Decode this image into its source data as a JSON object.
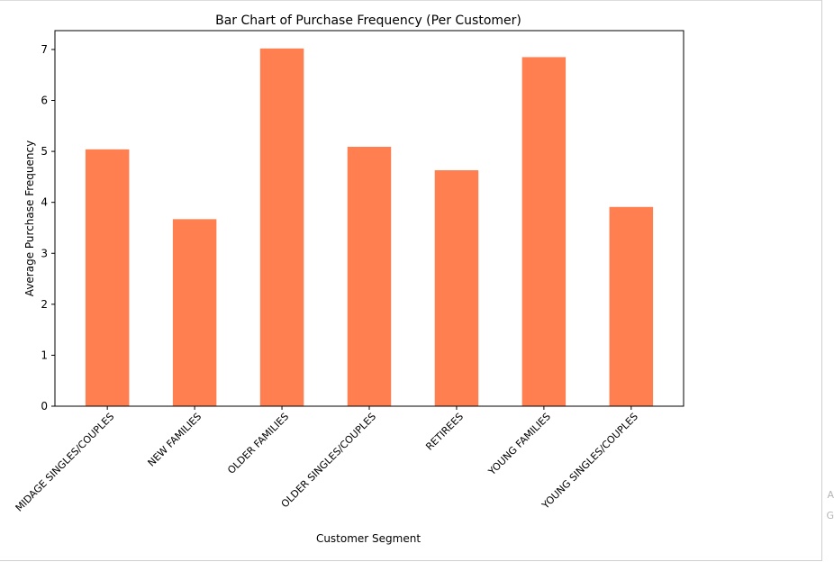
{
  "side_hint": {
    "line1": "A",
    "line2": "G"
  },
  "chart_data": {
    "type": "bar",
    "title": "Bar Chart of Purchase Frequency (Per Customer)",
    "xlabel": "Customer Segment",
    "ylabel": "Average Purchase Frequency",
    "categories": [
      "MIDAGE SINGLES/COUPLES",
      "NEW FAMILIES",
      "OLDER FAMILIES",
      "OLDER SINGLES/COUPLES",
      "RETIREES",
      "YOUNG FAMILIES",
      "YOUNG SINGLES/COUPLES"
    ],
    "values": [
      5.04,
      3.67,
      7.02,
      5.09,
      4.63,
      6.85,
      3.91
    ],
    "yticks": [
      0,
      1,
      2,
      3,
      4,
      5,
      6,
      7
    ],
    "ylim": [
      0,
      7.37
    ],
    "bar_color": "#ff7f50",
    "grid": false,
    "legend": "none"
  }
}
